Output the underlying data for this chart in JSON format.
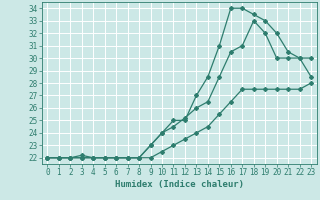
{
  "xlabel": "Humidex (Indice chaleur)",
  "xlim": [
    -0.5,
    23.5
  ],
  "ylim": [
    21.5,
    34.5
  ],
  "xticks": [
    0,
    1,
    2,
    3,
    4,
    5,
    6,
    7,
    8,
    9,
    10,
    11,
    12,
    13,
    14,
    15,
    16,
    17,
    18,
    19,
    20,
    21,
    22,
    23
  ],
  "yticks": [
    22,
    23,
    24,
    25,
    26,
    27,
    28,
    29,
    30,
    31,
    32,
    33,
    34
  ],
  "line_color": "#2e7d6e",
  "bg_color": "#cce8e6",
  "grid_color": "#b0d8d5",
  "line1_x": [
    0,
    1,
    2,
    3,
    4,
    5,
    6,
    7,
    8,
    9,
    10,
    11,
    12,
    13,
    14,
    15,
    16,
    17,
    18,
    19,
    20,
    21,
    22,
    23
  ],
  "line1_y": [
    22.0,
    22.0,
    22.0,
    22.0,
    22.0,
    22.0,
    22.0,
    22.0,
    22.0,
    22.0,
    22.5,
    23.0,
    23.5,
    24.0,
    24.5,
    25.5,
    26.5,
    27.5,
    27.5,
    27.5,
    27.5,
    27.5,
    27.5,
    28.0
  ],
  "line2_x": [
    0,
    1,
    2,
    3,
    4,
    5,
    6,
    7,
    8,
    9,
    10,
    11,
    12,
    13,
    14,
    15,
    16,
    17,
    18,
    19,
    20,
    21,
    22,
    23
  ],
  "line2_y": [
    22.0,
    22.0,
    22.0,
    22.0,
    22.0,
    22.0,
    22.0,
    22.0,
    22.0,
    23.0,
    24.0,
    24.5,
    25.2,
    26.0,
    26.5,
    28.5,
    30.5,
    31.0,
    33.0,
    32.0,
    30.0,
    30.0,
    30.0,
    30.0
  ],
  "line3_x": [
    0,
    1,
    2,
    3,
    4,
    5,
    6,
    7,
    8,
    9,
    10,
    11,
    12,
    13,
    14,
    15,
    16,
    17,
    18,
    19,
    20,
    21,
    22,
    23
  ],
  "line3_y": [
    22.0,
    22.0,
    22.0,
    22.2,
    22.0,
    22.0,
    22.0,
    22.0,
    22.0,
    23.0,
    24.0,
    25.0,
    25.0,
    27.0,
    28.5,
    31.0,
    34.0,
    34.0,
    33.5,
    33.0,
    32.0,
    30.5,
    30.0,
    28.5
  ],
  "xlabel_fontsize": 6.5,
  "tick_fontsize": 5.5
}
